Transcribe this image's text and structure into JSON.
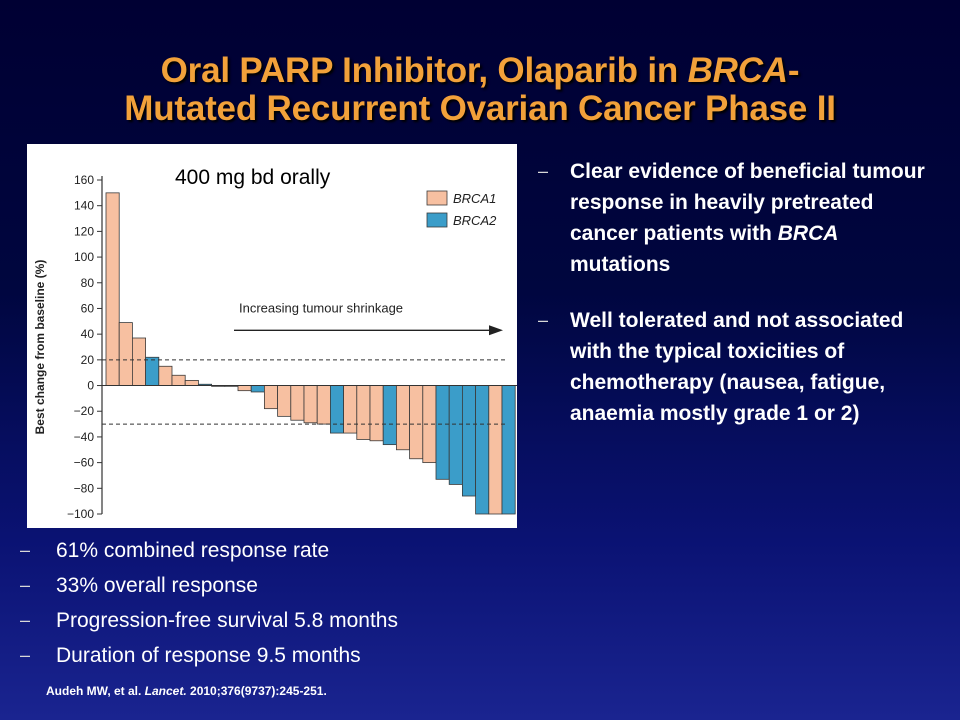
{
  "slide": {
    "title_line1_pre": "Oral PARP Inhibitor, Olaparib in ",
    "title_line1_italic": "BRCA",
    "title_line1_post": "-",
    "title_line2": "Mutated Recurrent Ovarian Cancer Phase II",
    "dose_label": "400 mg bd orally",
    "right_bullets": [
      {
        "pre": "Clear evidence of beneficial tumour response in heavily pretreated cancer patients with ",
        "italic": "BRCA",
        "post": " mutations"
      },
      {
        "pre": "Well tolerated and not associated with the typical toxicities of chemotherapy (nausea, fatigue, anaemia mostly grade 1 or 2)",
        "italic": "",
        "post": ""
      }
    ],
    "left_bullets": [
      "61% combined response rate",
      "33% overall response",
      "Progression-free survival 5.8 months",
      "Duration of response 9.5 months"
    ],
    "citation": {
      "authors": "Audeh  MW, et al. ",
      "journal": "Lancet.",
      "details": " 2010;376(9737):245-251."
    },
    "bullet_dash": "–"
  },
  "chart_data": {
    "type": "bar",
    "ylabel": "Best change from baseline (%)",
    "ylim": [
      -100,
      160
    ],
    "yticks": [
      160,
      140,
      120,
      100,
      80,
      60,
      40,
      20,
      0,
      -20,
      -40,
      -60,
      -80,
      -100
    ],
    "reference_lines": [
      20,
      -30
    ],
    "annotation": "Increasing tumour shrinkage",
    "legend": [
      {
        "name": "BRCA1",
        "color": "#f7c0a1"
      },
      {
        "name": "BRCA2",
        "color": "#3b9dc9"
      }
    ],
    "legend_position": "top-right",
    "bars": [
      {
        "value": 150,
        "group": "BRCA1"
      },
      {
        "value": 49,
        "group": "BRCA1"
      },
      {
        "value": 37,
        "group": "BRCA1"
      },
      {
        "value": 22,
        "group": "BRCA2"
      },
      {
        "value": 15,
        "group": "BRCA1"
      },
      {
        "value": 8,
        "group": "BRCA1"
      },
      {
        "value": 4,
        "group": "BRCA1"
      },
      {
        "value": 1,
        "group": "BRCA2"
      },
      {
        "value": 0,
        "group": "BRCA1"
      },
      {
        "value": 0,
        "group": "BRCA2"
      },
      {
        "value": -4,
        "group": "BRCA1"
      },
      {
        "value": -5,
        "group": "BRCA2"
      },
      {
        "value": -18,
        "group": "BRCA1"
      },
      {
        "value": -24,
        "group": "BRCA1"
      },
      {
        "value": -27,
        "group": "BRCA1"
      },
      {
        "value": -29,
        "group": "BRCA1"
      },
      {
        "value": -30,
        "group": "BRCA1"
      },
      {
        "value": -37,
        "group": "BRCA2"
      },
      {
        "value": -37,
        "group": "BRCA1"
      },
      {
        "value": -42,
        "group": "BRCA1"
      },
      {
        "value": -43,
        "group": "BRCA1"
      },
      {
        "value": -46,
        "group": "BRCA2"
      },
      {
        "value": -50,
        "group": "BRCA1"
      },
      {
        "value": -57,
        "group": "BRCA1"
      },
      {
        "value": -60,
        "group": "BRCA1"
      },
      {
        "value": -73,
        "group": "BRCA2"
      },
      {
        "value": -77,
        "group": "BRCA2"
      },
      {
        "value": -86,
        "group": "BRCA2"
      },
      {
        "value": -100,
        "group": "BRCA2"
      },
      {
        "value": -100,
        "group": "BRCA1"
      },
      {
        "value": -100,
        "group": "BRCA2"
      }
    ]
  }
}
